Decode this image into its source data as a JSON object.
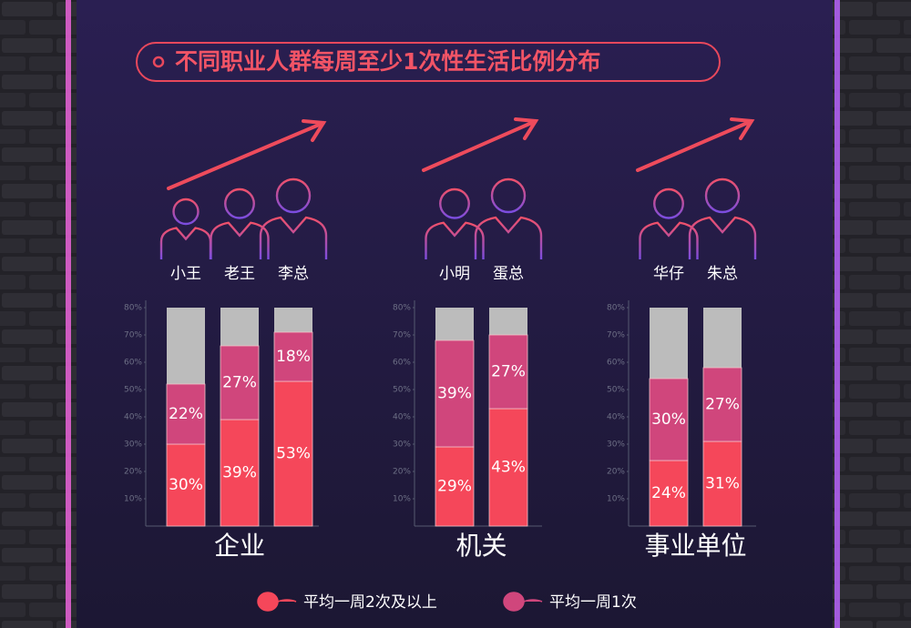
{
  "title": "不同职业人群每周至少1次性生活比例分布",
  "legend": {
    "series": [
      {
        "name": "平均一周2次及以上",
        "color": "#f5475a"
      },
      {
        "name": "平均一周1次",
        "color": "#d0467c"
      }
    ]
  },
  "chart_data": [
    {
      "type": "stacked_bar",
      "label": "企业",
      "categories": [
        "小王",
        "老王",
        "李总"
      ],
      "series": [
        {
          "values": [
            30,
            39,
            53
          ],
          "value_labels": [
            "30%",
            "39%",
            "53%"
          ]
        },
        {
          "values": [
            22,
            27,
            18
          ],
          "value_labels": [
            "22%",
            "27%",
            "18%"
          ]
        }
      ],
      "ylim": [
        0,
        80
      ],
      "yticks": [
        {
          "value": 10,
          "label": "10%"
        },
        {
          "value": 20,
          "label": "20%"
        },
        {
          "value": 30,
          "label": "30%"
        },
        {
          "value": 40,
          "label": "40%"
        },
        {
          "value": 50,
          "label": "50%"
        },
        {
          "value": 60,
          "label": "60%"
        },
        {
          "value": 70,
          "label": "70%"
        },
        {
          "value": 80,
          "label": "80%"
        }
      ]
    },
    {
      "type": "stacked_bar",
      "label": "机关",
      "categories": [
        "小明",
        "蛋总"
      ],
      "series": [
        {
          "values": [
            29,
            43
          ],
          "value_labels": [
            "29%",
            "43%"
          ]
        },
        {
          "values": [
            39,
            27
          ],
          "value_labels": [
            "39%",
            "27%"
          ]
        }
      ],
      "ylim": [
        0,
        80
      ],
      "yticks": [
        {
          "value": 10,
          "label": "10%"
        },
        {
          "value": 20,
          "label": "20%"
        },
        {
          "value": 30,
          "label": "30%"
        },
        {
          "value": 40,
          "label": "40%"
        },
        {
          "value": 50,
          "label": "50%"
        },
        {
          "value": 60,
          "label": "60%"
        },
        {
          "value": 70,
          "label": "70%"
        },
        {
          "value": 80,
          "label": "80%"
        }
      ]
    },
    {
      "type": "stacked_bar",
      "label": "事业单位",
      "categories": [
        "华仔",
        "朱总"
      ],
      "series": [
        {
          "values": [
            24,
            31
          ],
          "value_labels": [
            "24%",
            "31%"
          ]
        },
        {
          "values": [
            30,
            27
          ],
          "value_labels": [
            "30%",
            "27%"
          ]
        }
      ],
      "ylim": [
        0,
        80
      ],
      "yticks": [
        {
          "value": 10,
          "label": "10%"
        },
        {
          "value": 20,
          "label": "20%"
        },
        {
          "value": 30,
          "label": "30%"
        },
        {
          "value": 40,
          "label": "40%"
        },
        {
          "value": 50,
          "label": "50%"
        },
        {
          "value": 60,
          "label": "60%"
        },
        {
          "value": 70,
          "label": "70%"
        },
        {
          "value": 80,
          "label": "80%"
        }
      ]
    }
  ]
}
